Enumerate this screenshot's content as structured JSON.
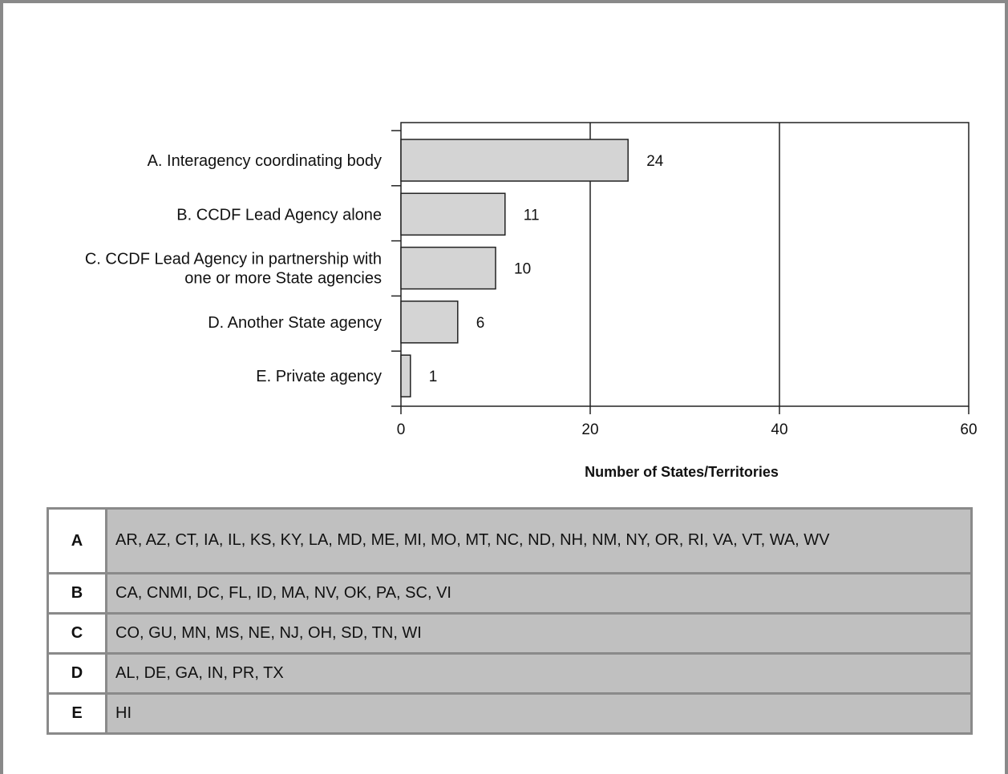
{
  "chart_data": {
    "type": "bar",
    "orientation": "horizontal",
    "categories": [
      "A. Interagency coordinating body",
      "B. CCDF Lead Agency alone",
      "C. CCDF Lead Agency in partnership with one or more State agencies",
      "D. Another State agency",
      "E. Private agency"
    ],
    "category_lines": [
      [
        "A. Interagency coordinating body"
      ],
      [
        "B. CCDF Lead Agency alone"
      ],
      [
        "C. CCDF Lead Agency in partnership with",
        "one or more State agencies"
      ],
      [
        "D. Another State agency"
      ],
      [
        "E. Private agency"
      ]
    ],
    "values": [
      24,
      11,
      10,
      6,
      1
    ],
    "xlabel": "Number of States/Territories",
    "xlim": [
      0,
      60
    ],
    "xticks": [
      0,
      20,
      40,
      60
    ],
    "gridlines": "vertical",
    "bar_color": "#d4d4d4"
  },
  "legend_table": [
    {
      "key": "A",
      "states": "AR, AZ, CT, IA, IL, KS, KY, LA, MD, ME, MI, MO, MT, NC, ND, NH, NM, NY, OR, RI, VA, VT, WA, WV"
    },
    {
      "key": "B",
      "states": "CA, CNMI, DC, FL, ID, MA, NV, OK, PA, SC, VI"
    },
    {
      "key": "C",
      "states": "CO, GU, MN, MS, NE, NJ, OH, SD, TN, WI"
    },
    {
      "key": "D",
      "states": "AL, DE, GA, IN, PR, TX"
    },
    {
      "key": "E",
      "states": "HI"
    }
  ]
}
